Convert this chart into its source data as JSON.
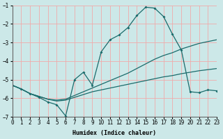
{
  "xlabel": "Humidex (Indice chaleur)",
  "bg_color": "#cce8e8",
  "grid_color": "#f0aaaa",
  "line_color": "#1a6b6b",
  "xlim": [
    0,
    23
  ],
  "ylim": [
    -7,
    -1
  ],
  "yticks": [
    -7,
    -6,
    -5,
    -4,
    -3,
    -2,
    -1
  ],
  "xticks": [
    0,
    1,
    2,
    3,
    4,
    5,
    6,
    7,
    8,
    9,
    10,
    11,
    12,
    13,
    14,
    15,
    16,
    17,
    18,
    19,
    20,
    21,
    22,
    23
  ],
  "line_top_x": [
    0,
    1,
    2,
    3,
    4,
    5,
    6,
    7,
    8,
    9,
    10,
    11,
    12,
    13,
    14,
    15,
    16,
    17,
    18,
    19,
    20,
    21,
    22,
    23
  ],
  "line_top_y": [
    -5.3,
    -5.5,
    -5.75,
    -5.9,
    -6.05,
    -6.1,
    -6.05,
    -5.85,
    -5.65,
    -5.45,
    -5.25,
    -5.05,
    -4.85,
    -4.65,
    -4.4,
    -4.15,
    -3.9,
    -3.7,
    -3.55,
    -3.35,
    -3.2,
    -3.05,
    -2.95,
    -2.85
  ],
  "line_bot_x": [
    0,
    1,
    2,
    3,
    4,
    5,
    6,
    7,
    8,
    9,
    10,
    11,
    12,
    13,
    14,
    15,
    16,
    17,
    18,
    19,
    20,
    21,
    22,
    23
  ],
  "line_bot_y": [
    -5.3,
    -5.5,
    -5.75,
    -5.9,
    -6.05,
    -6.15,
    -6.1,
    -5.95,
    -5.8,
    -5.65,
    -5.55,
    -5.45,
    -5.35,
    -5.25,
    -5.15,
    -5.05,
    -4.95,
    -4.85,
    -4.78,
    -4.68,
    -4.6,
    -4.52,
    -4.46,
    -4.4
  ],
  "line_main_x": [
    0,
    1,
    2,
    3,
    4,
    5,
    6,
    7,
    8,
    9,
    10,
    11,
    12,
    13,
    14,
    15,
    16,
    17,
    18,
    19,
    20,
    21,
    22,
    23
  ],
  "line_main_y": [
    -5.3,
    -5.5,
    -5.75,
    -5.95,
    -6.2,
    -6.35,
    -6.95,
    -5.0,
    -4.6,
    -5.3,
    -3.5,
    -2.85,
    -2.6,
    -2.2,
    -1.55,
    -1.1,
    -1.15,
    -1.6,
    -2.55,
    -3.4,
    -5.65,
    -5.7,
    -5.55,
    -5.6
  ]
}
